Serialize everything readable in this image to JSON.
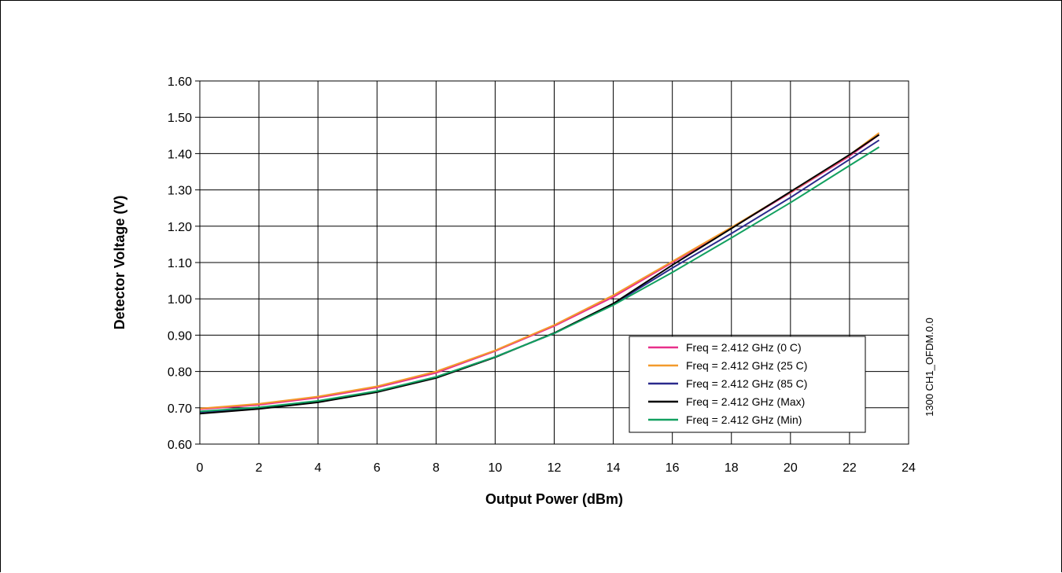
{
  "chart_data": {
    "type": "line",
    "xlabel": "Output Power (dBm)",
    "ylabel": "Detector Voltage (V)",
    "xlim": [
      0,
      24
    ],
    "ylim": [
      0.6,
      1.6
    ],
    "x_ticks": [
      "0",
      "2",
      "4",
      "6",
      "8",
      "10",
      "12",
      "14",
      "16",
      "18",
      "20",
      "22",
      "24"
    ],
    "y_ticks": [
      "0.60",
      "0.70",
      "0.80",
      "0.90",
      "1.00",
      "1.10",
      "1.20",
      "1.30",
      "1.40",
      "1.50",
      "1.60"
    ],
    "grid": true,
    "legend_position": "bottom-right",
    "side_label": "1300 CH1_OFDM.0.0",
    "x": [
      0,
      2,
      4,
      6,
      8,
      10,
      12,
      14,
      16,
      18,
      20,
      22,
      23
    ],
    "series": [
      {
        "name": "Freq = 2.412 GHz (0 C)",
        "color": "#e8308a",
        "values": [
          0.696,
          0.708,
          0.728,
          0.756,
          0.796,
          0.856,
          0.925,
          1.005,
          1.1,
          1.195,
          1.292,
          1.393,
          1.452
        ]
      },
      {
        "name": "Freq = 2.412 GHz (25 C)",
        "color": "#f39a2c",
        "values": [
          0.698,
          0.711,
          0.731,
          0.759,
          0.8,
          0.858,
          0.928,
          1.01,
          1.103,
          1.197,
          1.294,
          1.396,
          1.457
        ]
      },
      {
        "name": "Freq = 2.412 GHz (85 C)",
        "color": "#2b2a8c",
        "values": [
          0.688,
          0.699,
          0.717,
          0.745,
          0.784,
          0.84,
          0.905,
          0.985,
          1.085,
          1.18,
          1.279,
          1.384,
          1.437
        ]
      },
      {
        "name": "Freq = 2.412 GHz (Max)",
        "color": "#000000",
        "values": [
          0.684,
          0.697,
          0.715,
          0.743,
          0.782,
          0.839,
          0.906,
          0.987,
          1.093,
          1.194,
          1.295,
          1.397,
          1.452
        ]
      },
      {
        "name": "Freq = 2.412 GHz (Min)",
        "color": "#12a060",
        "values": [
          0.69,
          0.701,
          0.719,
          0.746,
          0.785,
          0.84,
          0.905,
          0.983,
          1.073,
          1.168,
          1.265,
          1.367,
          1.418
        ]
      }
    ]
  }
}
